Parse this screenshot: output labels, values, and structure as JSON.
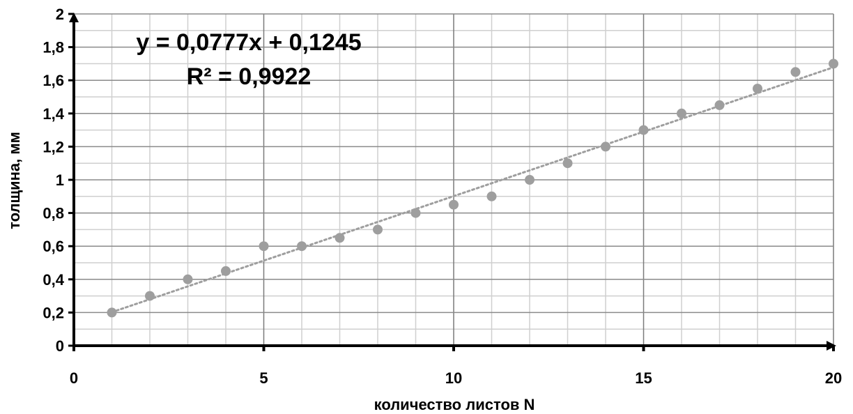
{
  "chart_data": {
    "type": "scatter",
    "xlabel": "количество листов N",
    "ylabel": "толщина, мм",
    "xlim": [
      0,
      20
    ],
    "ylim": [
      0,
      2
    ],
    "x_ticks": [
      "0",
      "5",
      "10",
      "15",
      "20"
    ],
    "y_ticks": [
      "0",
      "0,2",
      "0,4",
      "0,6",
      "0,8",
      "1",
      "1,2",
      "1,4",
      "1,6",
      "1,8",
      "2"
    ],
    "grid": true,
    "legend": "none",
    "point_color": "#9e9e9e",
    "trendline_color": "#9e9e9e",
    "series": [
      {
        "x": [
          1,
          2,
          3,
          4,
          5,
          6,
          7,
          8,
          9,
          10,
          11,
          12,
          13,
          14,
          15,
          16,
          17,
          18,
          19,
          20
        ],
        "y": [
          0.2,
          0.3,
          0.4,
          0.45,
          0.6,
          0.6,
          0.65,
          0.7,
          0.8,
          0.85,
          0.9,
          1.0,
          1.1,
          1.2,
          1.3,
          1.4,
          1.45,
          1.55,
          1.65,
          1.7
        ]
      }
    ],
    "trendline": {
      "type": "linear",
      "slope": 0.0777,
      "intercept": 0.1245,
      "equation": "y = 0,0777x + 0,1245",
      "r_squared": "R² = 0,9922"
    }
  }
}
